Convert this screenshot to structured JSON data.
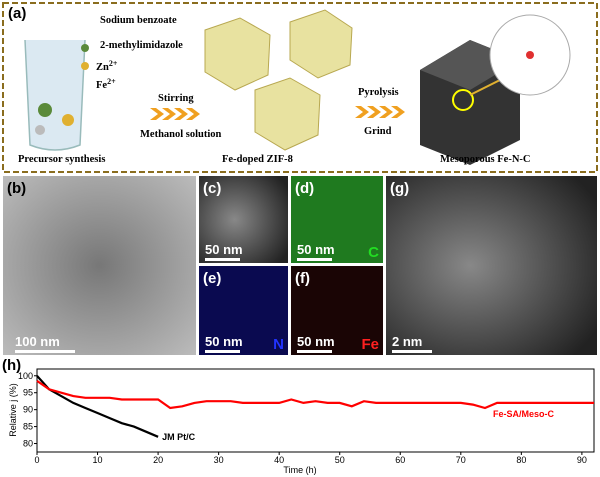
{
  "schematic": {
    "label": "(a)",
    "reagents": [
      "Sodium benzoate",
      "2-methylimidazole"
    ],
    "ions": [
      {
        "element": "Zn",
        "charge": "2+"
      },
      {
        "element": "Fe",
        "charge": "2+"
      }
    ],
    "step1": [
      "Stirring",
      "Methanol solution"
    ],
    "step2": [
      "Pyrolysis",
      "Grind"
    ],
    "stages": [
      "Precursor synthesis",
      "Fe-doped ZIF-8",
      "Mesoporous Fe-N-C"
    ]
  },
  "micrographs": [
    {
      "label": "(b)",
      "scale": "100 nm"
    },
    {
      "label": "(c)",
      "scale": "50 nm"
    },
    {
      "label": "(d)",
      "scale": "50 nm",
      "element": "C"
    },
    {
      "label": "(e)",
      "scale": "50 nm",
      "element": "N"
    },
    {
      "label": "(f)",
      "scale": "50 nm",
      "element": "Fe"
    },
    {
      "label": "(g)",
      "scale": "2 nm"
    }
  ],
  "chart_data": {
    "type": "line",
    "label": "(h)",
    "x_label": "Time (h)",
    "y_label": "Relative j (%)",
    "x": [
      0,
      2,
      4,
      6,
      8,
      10,
      12,
      14,
      16,
      18,
      20,
      22,
      24,
      26,
      28,
      30,
      32,
      34,
      36,
      38,
      40,
      42,
      44,
      46,
      48,
      50,
      52,
      54,
      56,
      58,
      60,
      62,
      64,
      66,
      68,
      70,
      72,
      74,
      76,
      78,
      80,
      82,
      84,
      86,
      88,
      90,
      92
    ],
    "series": [
      {
        "name": "JM Pt/C",
        "color": "#000000",
        "values": [
          100,
          96,
          94,
          92,
          90.5,
          89,
          87.5,
          86,
          85,
          83.5,
          82,
          null,
          null,
          null,
          null,
          null,
          null,
          null,
          null,
          null,
          null,
          null,
          null,
          null,
          null,
          null,
          null,
          null,
          null,
          null,
          null,
          null,
          null,
          null,
          null,
          null,
          null,
          null,
          null,
          null,
          null,
          null,
          null,
          null,
          null,
          null,
          null
        ]
      },
      {
        "name": "Fe-SA/Meso-C",
        "color": "#ff0000",
        "values": [
          98.5,
          96,
          95,
          94,
          93.5,
          93.5,
          93.5,
          93,
          93,
          93,
          93,
          90.5,
          91,
          92,
          92.5,
          92.5,
          92.5,
          92,
          92,
          92,
          92,
          93,
          92,
          92.5,
          92,
          92,
          91,
          92.5,
          92,
          92,
          92,
          92,
          92,
          92,
          92,
          92,
          91.5,
          90.5,
          92,
          92,
          92,
          92,
          92,
          92,
          92,
          92,
          92
        ]
      }
    ],
    "xlim": [
      0,
      92
    ],
    "ylim": [
      77.5,
      102
    ],
    "xticks": [
      0,
      10,
      20,
      30,
      40,
      50,
      60,
      70,
      80,
      90
    ],
    "yticks": [
      80,
      85,
      90,
      95,
      100
    ],
    "grid": false
  }
}
